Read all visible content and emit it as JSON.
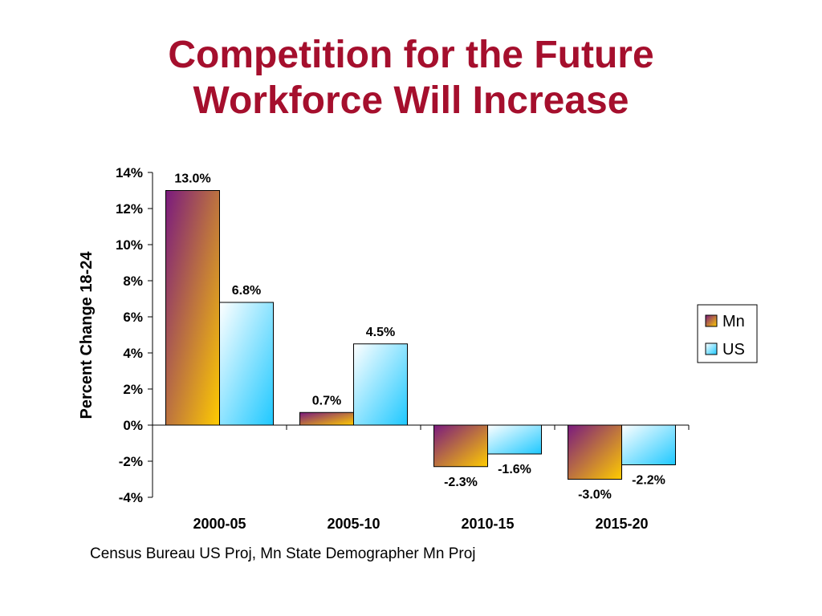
{
  "slide": {
    "title_line1": "Competition for the Future",
    "title_line2": "Workforce Will Increase",
    "source": "Census Bureau US Proj, Mn State Demographer Mn Proj"
  },
  "colors": {
    "title": "#a50f2d",
    "mn_gradient": [
      "#7a1a7e",
      "#ffcc00"
    ],
    "us_gradient": [
      "#ffffff",
      "#1ec8ff"
    ]
  },
  "chart_data": {
    "type": "bar",
    "title": "",
    "xlabel": "",
    "ylabel": "Percent Change 18-24",
    "categories": [
      "2000-05",
      "2005-10",
      "2010-15",
      "2015-20"
    ],
    "series": [
      {
        "name": "Mn",
        "values": [
          13.0,
          0.7,
          -2.3,
          -3.0
        ],
        "labels": [
          "13.0%",
          "0.7%",
          "-2.3%",
          "-3.0%"
        ]
      },
      {
        "name": "US",
        "values": [
          6.8,
          4.5,
          -1.6,
          -2.2
        ],
        "labels": [
          "6.8%",
          "4.5%",
          "-1.6%",
          "-2.2%"
        ]
      }
    ],
    "ylim": [
      -4,
      14
    ],
    "yticks": [
      14,
      12,
      10,
      8,
      6,
      4,
      2,
      0,
      -2,
      -4
    ],
    "ytick_labels": [
      "14%",
      "12%",
      "10%",
      "8%",
      "6%",
      "4%",
      "2%",
      "0%",
      "-2%",
      "-4%"
    ],
    "grid": false,
    "legend_position": "right"
  }
}
